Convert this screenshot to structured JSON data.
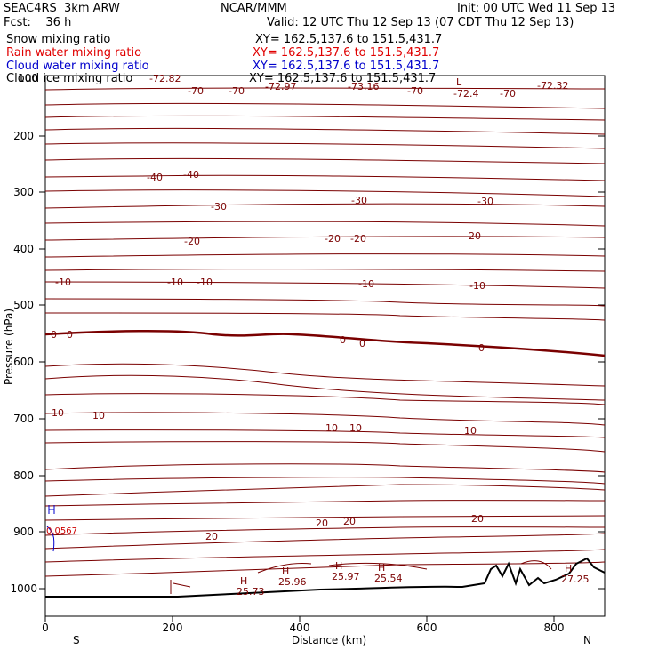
{
  "header": {
    "project": "SEAC4RS",
    "model": "3km ARW",
    "org": "NCAR/MMM",
    "init": "Init: 00 UTC Wed 11 Sep 13",
    "fcst_label": "Fcst:",
    "fcst_value": "36 h",
    "valid": "Valid: 12 UTC Thu 12 Sep 13 (07 CDT Thu 12 Sep 13)"
  },
  "legend": [
    {
      "label": "Snow mixing ratio",
      "xy": "XY= 162.5,137.6 to 151.5,431.7",
      "color": "#000000"
    },
    {
      "label": "Rain water mixing ratio",
      "xy": "XY= 162.5,137.6 to 151.5,431.7",
      "color": "#e00000"
    },
    {
      "label": "Cloud water mixing ratio",
      "xy": "XY= 162.5,137.6 to 151.5,431.7",
      "color": "#0000cc"
    },
    {
      "label": "Cloud ice mixing ratio",
      "xy": "XY= 162.5,137.6 to 151.5,431.7",
      "color": "#000000"
    }
  ],
  "axes": {
    "ylabel": "Pressure (hPa)",
    "xlabel": "Distance (km)",
    "left_end": "S",
    "right_end": "N",
    "y_ticks": [
      "200",
      "300",
      "400",
      "500",
      "600",
      "700",
      "800",
      "900",
      "1000"
    ],
    "x_ticks": [
      "0",
      "200",
      "400",
      "600",
      "800"
    ],
    "top_label_fragment": "100"
  },
  "colors": {
    "contour": "#7a0000",
    "terrain": "#000000",
    "cloud": "#0000cc"
  },
  "contour_labels": {
    "minus70": [
      "-72.82",
      "-70",
      "-70",
      "-72.97",
      "-73.16",
      "-70",
      "-72.4",
      "-70",
      "-72.32"
    ],
    "minus40": [
      "-40",
      "-40"
    ],
    "minus30": [
      "-30",
      "-30",
      "-30"
    ],
    "minus20": [
      "-20",
      "-20",
      "-20",
      "-20"
    ],
    "minus10": [
      "-10",
      "-10",
      "-10",
      "-10",
      "-10"
    ],
    "zero": [
      "0",
      "0",
      "0",
      "0",
      "0"
    ],
    "ten": [
      "10",
      "10",
      "10",
      "10",
      "10"
    ],
    "twenty": [
      "20",
      "20",
      "20",
      "20"
    ],
    "highs": [
      {
        "h": "H",
        "v": "25.73"
      },
      {
        "h": "H",
        "v": "25.96"
      },
      {
        "h": "H",
        "v": "25.97"
      },
      {
        "h": "H",
        "v": "25.54"
      },
      {
        "h": "H",
        "v": "27.25"
      }
    ],
    "low_marker": "L",
    "cloud_label": "0.0567"
  }
}
